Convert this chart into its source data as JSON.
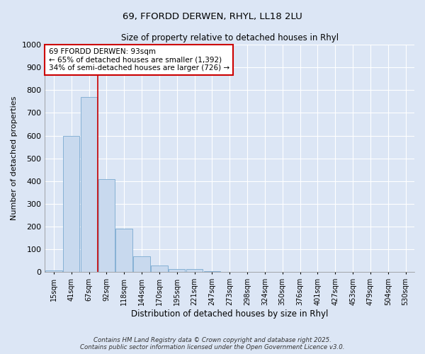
{
  "title_line1": "69, FFORDD DERWEN, RHYL, LL18 2LU",
  "title_line2": "Size of property relative to detached houses in Rhyl",
  "xlabel": "Distribution of detached houses by size in Rhyl",
  "ylabel": "Number of detached properties",
  "bar_labels": [
    "15sqm",
    "41sqm",
    "67sqm",
    "92sqm",
    "118sqm",
    "144sqm",
    "170sqm",
    "195sqm",
    "221sqm",
    "247sqm",
    "273sqm",
    "298sqm",
    "324sqm",
    "350sqm",
    "376sqm",
    "401sqm",
    "427sqm",
    "453sqm",
    "479sqm",
    "504sqm",
    "530sqm"
  ],
  "bar_heights": [
    8,
    600,
    770,
    410,
    190,
    70,
    30,
    15,
    15,
    5,
    0,
    0,
    0,
    0,
    0,
    0,
    0,
    0,
    0,
    0,
    0
  ],
  "bar_color": "#c8d9ee",
  "bar_edge_color": "#7aaad0",
  "vline_color": "#cc0000",
  "annotation_text": "69 FFORDD DERWEN: 93sqm\n← 65% of detached houses are smaller (1,392)\n34% of semi-detached houses are larger (726) →",
  "annotation_box_color": "#ffffff",
  "annotation_box_edge": "#cc0000",
  "ylim": [
    0,
    1000
  ],
  "yticks": [
    0,
    100,
    200,
    300,
    400,
    500,
    600,
    700,
    800,
    900,
    1000
  ],
  "background_color": "#dce6f5",
  "plot_bg_color": "#dce6f5",
  "footer_line1": "Contains HM Land Registry data © Crown copyright and database right 2025.",
  "footer_line2": "Contains public sector information licensed under the Open Government Licence v3.0."
}
